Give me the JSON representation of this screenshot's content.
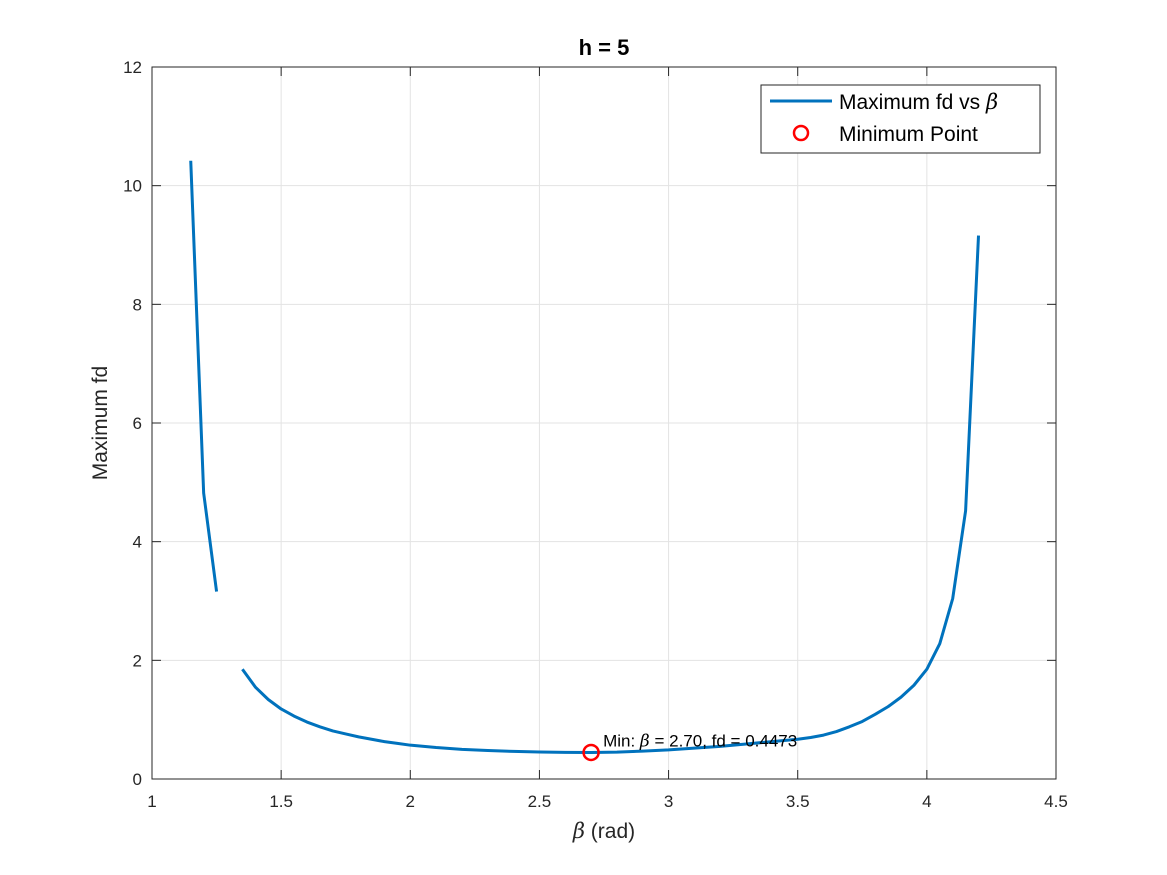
{
  "chart_data": {
    "type": "line",
    "title": "h = 5",
    "xlabel_symbol": "β",
    "xlabel_suffix": " (rad)",
    "ylabel": "Maximum fd",
    "xlim": [
      1,
      4.5
    ],
    "ylim": [
      0,
      12
    ],
    "xticks": [
      1,
      1.5,
      2,
      2.5,
      3,
      3.5,
      4,
      4.5
    ],
    "xtick_labels": [
      "1",
      "1.5",
      "2",
      "2.5",
      "3",
      "3.5",
      "4",
      "4.5"
    ],
    "yticks": [
      0,
      2,
      4,
      6,
      8,
      10,
      12
    ],
    "ytick_labels": [
      "0",
      "2",
      "4",
      "6",
      "8",
      "10",
      "12"
    ],
    "grid": true,
    "legend_position": "top-right",
    "series": [
      {
        "name_prefix": "Maximum fd vs ",
        "name_symbol": "β",
        "color": "#0072BD",
        "segments": [
          {
            "x": [
              1.15,
              1.2,
              1.25
            ],
            "y": [
              10.42,
              4.82,
              3.16
            ]
          },
          {
            "x": [
              1.35,
              1.4,
              1.45,
              1.5,
              1.55,
              1.6,
              1.65,
              1.7,
              1.75,
              1.8,
              1.85,
              1.9,
              1.95,
              2.0,
              2.1,
              2.2,
              2.3,
              2.4,
              2.5,
              2.6,
              2.7,
              2.8,
              2.9,
              3.0,
              3.1,
              3.2,
              3.3,
              3.4,
              3.5,
              3.55,
              3.6,
              3.65,
              3.7,
              3.75,
              3.8,
              3.85,
              3.9,
              3.95,
              4.0,
              4.05,
              4.1,
              4.15,
              4.2
            ],
            "y": [
              1.85,
              1.55,
              1.34,
              1.18,
              1.06,
              0.96,
              0.88,
              0.81,
              0.76,
              0.71,
              0.67,
              0.63,
              0.6,
              0.57,
              0.53,
              0.5,
              0.48,
              0.465,
              0.455,
              0.449,
              0.4473,
              0.452,
              0.47,
              0.49,
              0.52,
              0.55,
              0.59,
              0.63,
              0.67,
              0.7,
              0.74,
              0.8,
              0.88,
              0.97,
              1.09,
              1.22,
              1.38,
              1.58,
              1.85,
              2.28,
              3.04,
              4.52,
              9.16
            ]
          }
        ]
      },
      {
        "name": "Minimum Point",
        "type": "marker",
        "color": "#FF0000",
        "x": [
          2.7
        ],
        "y": [
          0.4473
        ]
      }
    ],
    "annotation": {
      "x": 2.7,
      "y": 0.4473,
      "prefix": "Min: ",
      "symbol": "β",
      "suffix": " = 2.70, fd = 0.4473"
    }
  }
}
